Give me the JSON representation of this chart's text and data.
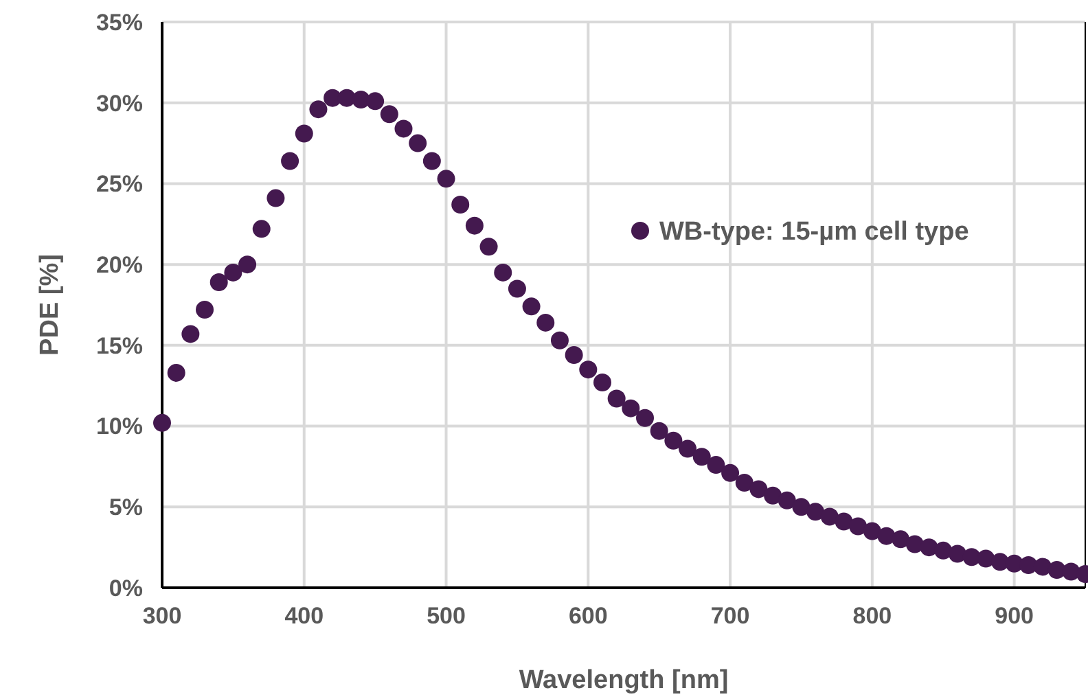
{
  "chart_data": {
    "type": "scatter",
    "xlabel": "Wavelength [nm]",
    "ylabel": "PDE [%]",
    "x": [
      300,
      310,
      320,
      330,
      340,
      350,
      360,
      370,
      380,
      390,
      400,
      410,
      420,
      430,
      440,
      450,
      460,
      470,
      480,
      490,
      500,
      510,
      520,
      530,
      540,
      550,
      560,
      570,
      580,
      590,
      600,
      610,
      620,
      630,
      640,
      650,
      660,
      670,
      680,
      690,
      700,
      710,
      720,
      730,
      740,
      750,
      760,
      770,
      780,
      790,
      800,
      810,
      820,
      830,
      840,
      850,
      860,
      870,
      880,
      890,
      900,
      910,
      920,
      930,
      940,
      950
    ],
    "series": [
      {
        "name": "WB-type: 15-µm cell type",
        "color": "#44194f",
        "values": [
          10.2,
          13.3,
          15.7,
          17.2,
          18.9,
          19.5,
          20.0,
          22.2,
          24.1,
          26.4,
          28.1,
          29.6,
          30.3,
          30.3,
          30.2,
          30.1,
          29.3,
          28.4,
          27.5,
          26.4,
          25.3,
          23.7,
          22.4,
          21.1,
          19.5,
          18.5,
          17.4,
          16.4,
          15.3,
          14.4,
          13.5,
          12.7,
          11.7,
          11.1,
          10.5,
          9.7,
          9.1,
          8.6,
          8.1,
          7.6,
          7.1,
          6.5,
          6.1,
          5.7,
          5.4,
          5.0,
          4.7,
          4.4,
          4.1,
          3.8,
          3.5,
          3.2,
          3.0,
          2.7,
          2.5,
          2.3,
          2.1,
          1.9,
          1.8,
          1.6,
          1.5,
          1.4,
          1.3,
          1.1,
          1.0,
          0.85
        ]
      }
    ],
    "xlim": [
      300,
      950
    ],
    "xticks": [
      300,
      400,
      500,
      600,
      700,
      800,
      900
    ],
    "ylim": [
      0,
      35
    ],
    "yticks": [
      {
        "value": 0,
        "label": "0%"
      },
      {
        "value": 5,
        "label": "5%"
      },
      {
        "value": 10,
        "label": "10%"
      },
      {
        "value": 15,
        "label": "15%"
      },
      {
        "value": 20,
        "label": "20%"
      },
      {
        "value": 25,
        "label": "25%"
      },
      {
        "value": 30,
        "label": "30%"
      },
      {
        "value": 35,
        "label": "35%"
      }
    ],
    "grid": true,
    "legend": "right",
    "marker": "circle"
  }
}
